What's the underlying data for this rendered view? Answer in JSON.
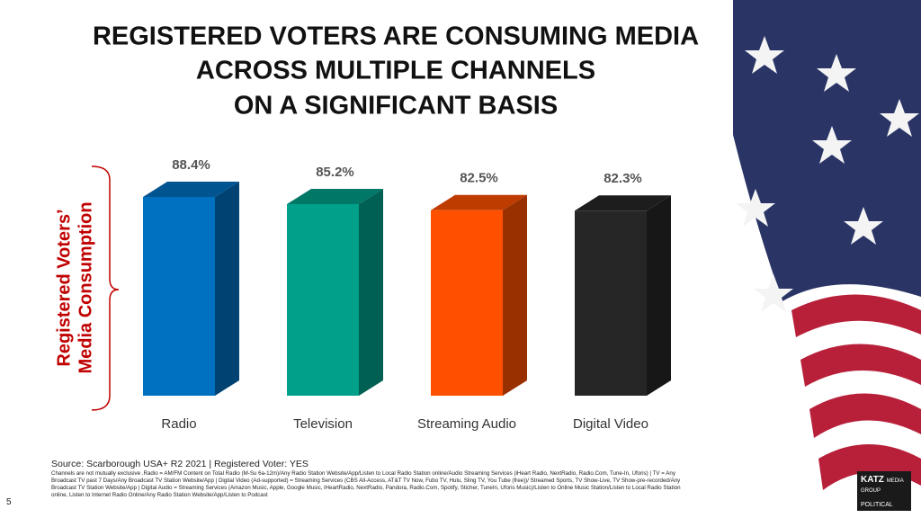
{
  "title_lines": [
    "REGISTERED VOTERS ARE CONSUMING MEDIA",
    "ACROSS MULTIPLE CHANNELS",
    "ON A SIGNIFICANT BASIS"
  ],
  "chart_data": {
    "type": "bar3d",
    "y_label_lines": [
      "Registered Voters’",
      "Media Consumption"
    ],
    "categories": [
      "Radio",
      "Television",
      "Streaming Audio",
      "Digital Video"
    ],
    "values": [
      88.4,
      85.2,
      82.5,
      82.3
    ],
    "value_labels": [
      "88.4%",
      "85.2%",
      "82.5%",
      "82.3%"
    ],
    "colors": [
      "#0070c0",
      "#00a08a",
      "#ff5000",
      "#262626"
    ],
    "ylim": [
      0,
      100
    ]
  },
  "source": "Source:  Scarborough USA+ R2 2021 | Registered Voter: YES",
  "footnote": "Channels are not mutually exclusive   .Radio = AM/FM Content on Total Radio (M-Su 6a-12m)/Any Radio Station Website/App/Listen to Local Radio Station online/Audio Streaming Services (iHeart Radio, NextRadio, Radio.Com, Tune-In, Uforis) | TV = Any Broadcast TV past 7 Days/Any Broadcast TV Station Website/App | Digital Video (Ad-supported) = Streaming Services (CBS All-Access, AT&T TV Now, Fubo TV, Hulu, Sling TV, You Tube (free))/ Streamed Sports, TV Show-Live, TV Show-pre-recorded/Any Broadcast TV Station Website/App | Digital Audio = Streaming Services (Amazon Music, Apple, Google Music, iHeartRadio, NextRadio, Pandora, Radio.Com, Spotify, Sticher, TuneIn, Uforis Music)/Listen to Online Music Station/Listen to Local Radio Station online, Listen to Internet Radio Online/Any Radio Station Website/App/Listen to Podcast",
  "page_number": "5",
  "logo": {
    "brand": "KATZ",
    "group": "MEDIA GROUP",
    "tag": "POLITICAL"
  }
}
